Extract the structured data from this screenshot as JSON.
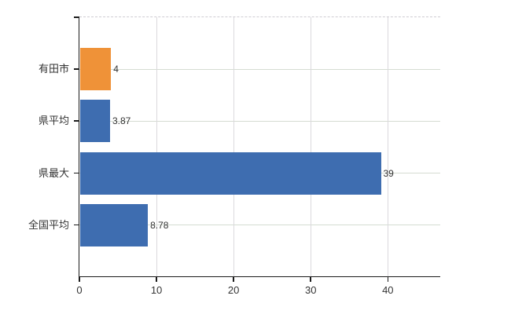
{
  "chart_data": {
    "type": "bar",
    "orientation": "horizontal",
    "title": "",
    "xlabel": "",
    "ylabel": "",
    "categories": [
      "有田市",
      "県平均",
      "県最大",
      "全国平均"
    ],
    "values": [
      4,
      3.87,
      39,
      8.78
    ],
    "value_labels": [
      "4",
      "3.87",
      "39",
      "8.78"
    ],
    "bar_colors": [
      "#ef9238",
      "#3e6db0",
      "#3e6db0",
      "#3e6db0"
    ],
    "xlim": [
      0,
      46.8
    ],
    "xticks": [
      0,
      10,
      20,
      30,
      40
    ],
    "xtick_labels": [
      "0",
      "10",
      "20",
      "30",
      "40"
    ],
    "grid": true,
    "legend": "none",
    "colors": {
      "background": "#ffffff",
      "axis": "#1c1c1c",
      "grid_horizontal": "#d5dcd2",
      "grid_vertical": "#dbd9dd",
      "top_border": "#cfccd3",
      "text": "#333333"
    }
  }
}
